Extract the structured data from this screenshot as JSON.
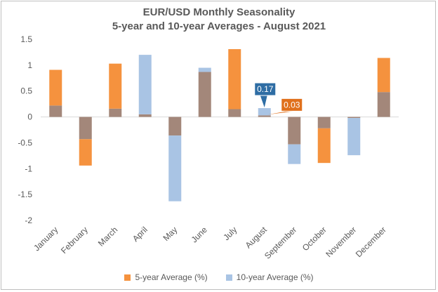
{
  "chart_data": {
    "type": "bar",
    "title": "EUR/USD Monthly Seasonality",
    "subtitle": "5-year and 10-year Averages - August 2021",
    "categories": [
      "January",
      "February",
      "March",
      "April",
      "May",
      "June",
      "July",
      "August",
      "September",
      "October",
      "November",
      "December"
    ],
    "series": [
      {
        "name": "5-year Average (%)",
        "color": "#f5923e",
        "values": [
          0.91,
          -0.94,
          1.03,
          0.05,
          -0.36,
          0.87,
          1.31,
          0.03,
          -0.53,
          -0.89,
          -0.02,
          1.14
        ]
      },
      {
        "name": "10-year Average (%)",
        "color": "#a9c4e4",
        "values": [
          0.22,
          -0.43,
          0.16,
          1.2,
          -1.63,
          0.95,
          0.15,
          0.17,
          -0.91,
          -0.22,
          -0.74,
          0.48
        ]
      }
    ],
    "overlap_color": "#a3877a",
    "ylim": [
      -2,
      1.5
    ],
    "yticks": [
      "1.5",
      "1",
      "0.5",
      "0",
      "-0.5",
      "-1",
      "-1.5",
      "-2"
    ],
    "ytick_values": [
      1.5,
      1,
      0.5,
      0,
      -0.5,
      -1,
      -1.5,
      -2
    ],
    "annotations": [
      {
        "text": "0.17",
        "category": "August",
        "series": "10-year Average (%)",
        "value": 0.17,
        "bg": "#2e6da4"
      },
      {
        "text": "0.03",
        "category": "August",
        "series": "5-year Average (%)",
        "value": 0.03,
        "bg": "#e0701c"
      }
    ]
  }
}
